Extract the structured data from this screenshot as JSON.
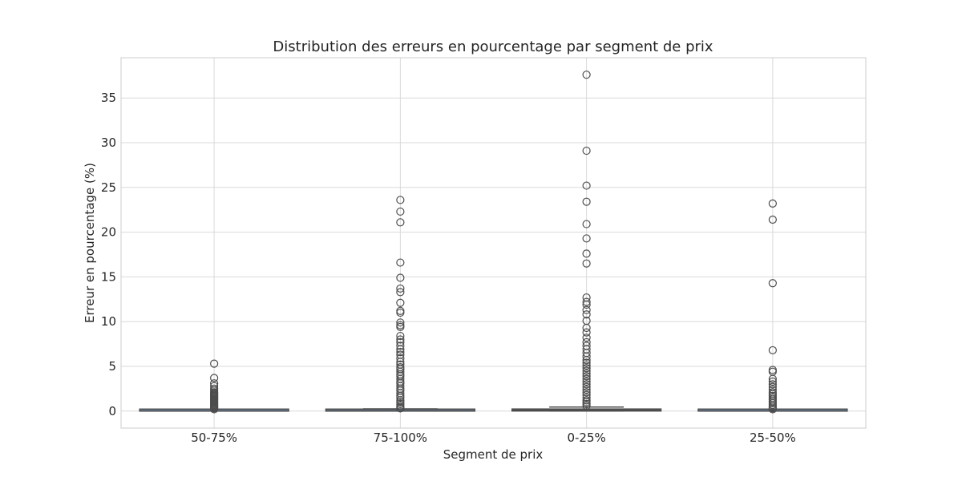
{
  "chart_data": {
    "type": "box",
    "title": "Distribution des erreurs en pourcentage par segment de prix",
    "xlabel": "Segment de prix",
    "ylabel": "Erreur en pourcentage (%)",
    "ylim": [
      -1.9,
      39.5
    ],
    "yticks": [
      0,
      5,
      10,
      15,
      20,
      25,
      30,
      35
    ],
    "grid": true,
    "categories": [
      "50-75%",
      "75-100%",
      "0-25%",
      "25-50%"
    ],
    "boxes": [
      {
        "category": "50-75%",
        "whisker_low": 0.0,
        "q1": 0.0,
        "median": 0.02,
        "q3": 0.06,
        "whisker_high": 0.15,
        "outliers": [
          5.3,
          3.7,
          3.1,
          2.8,
          2.5,
          2.3,
          2.1,
          2.0,
          1.9,
          1.8,
          1.7,
          1.6,
          1.5,
          1.4,
          1.3,
          1.2,
          1.1,
          1.0,
          0.9,
          0.8,
          0.7,
          0.6,
          0.5,
          0.4,
          0.3,
          0.2
        ]
      },
      {
        "category": "75-100%",
        "whisker_low": 0.0,
        "q1": 0.0,
        "median": 0.04,
        "q3": 0.1,
        "whisker_high": 0.25,
        "outliers": [
          23.6,
          22.3,
          21.1,
          16.6,
          14.9,
          13.7,
          13.3,
          12.1,
          11.2,
          11.0,
          9.9,
          9.6,
          9.4,
          8.4,
          8.0,
          7.7,
          7.3,
          6.9,
          6.6,
          6.3,
          5.9,
          5.5,
          5.2,
          4.9,
          4.7,
          4.4,
          4.1,
          3.9,
          3.6,
          3.3,
          3.1,
          2.8,
          2.5,
          2.3,
          2.0,
          1.7,
          1.5,
          1.2,
          1.0,
          0.8,
          0.6,
          0.4,
          0.3
        ]
      },
      {
        "category": "0-25%",
        "whisker_low": 0.0,
        "q1": 0.01,
        "median": 0.1,
        "q3": 0.2,
        "whisker_high": 0.45,
        "outliers": [
          37.6,
          29.1,
          25.2,
          23.4,
          20.9,
          19.3,
          17.6,
          16.5,
          12.7,
          12.2,
          11.9,
          11.3,
          10.8,
          10.1,
          9.3,
          8.8,
          8.2,
          7.7,
          7.3,
          6.9,
          6.5,
          6.1,
          5.7,
          5.4,
          5.1,
          4.8,
          4.5,
          4.2,
          3.9,
          3.6,
          3.3,
          3.0,
          2.7,
          2.4,
          2.1,
          1.8,
          1.5,
          1.2,
          1.0,
          0.8,
          0.6
        ]
      },
      {
        "category": "25-50%",
        "whisker_low": 0.0,
        "q1": 0.0,
        "median": 0.02,
        "q3": 0.06,
        "whisker_high": 0.15,
        "outliers": [
          23.2,
          21.4,
          14.3,
          6.8,
          4.6,
          4.4,
          3.6,
          3.3,
          3.0,
          2.7,
          2.4,
          2.1,
          1.9,
          1.7,
          1.5,
          1.3,
          1.1,
          0.9,
          0.7,
          0.5,
          0.3,
          0.2
        ]
      }
    ],
    "colors": {
      "box_fill": "#6f8fb3",
      "line": "#4d4d4d",
      "grid": "#d9d9d9",
      "frame": "#cccccc",
      "text": "#262626"
    }
  }
}
